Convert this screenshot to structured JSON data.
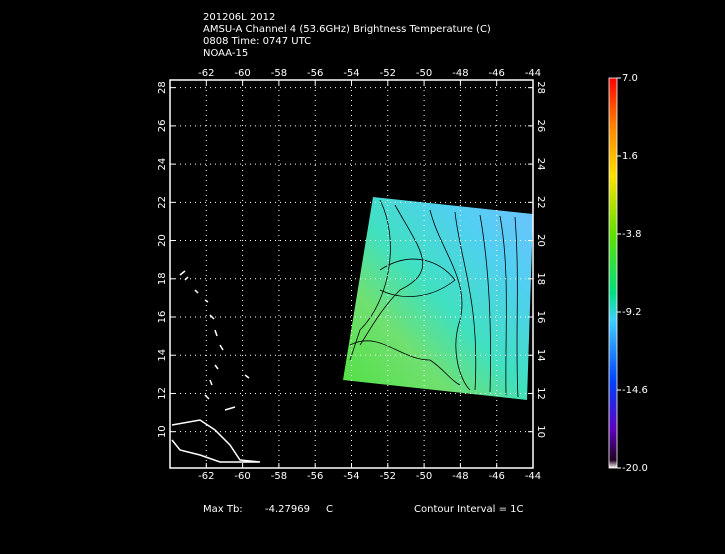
{
  "header": {
    "lines": [
      "201206L 2012",
      "AMSU-A Channel 4 (53.6GHz) Brightness Temperature (C)",
      "0808 Time: 0747 UTC",
      "NOAA-15"
    ]
  },
  "map": {
    "xlim": [
      -64,
      -44
    ],
    "ylim": [
      8.1,
      28.4
    ],
    "xticks": [
      -62,
      -60,
      -58,
      -56,
      -54,
      -52,
      -50,
      -48,
      -46,
      -44
    ],
    "yticks": [
      10,
      12,
      14,
      16,
      18,
      20,
      22,
      24,
      26,
      28
    ],
    "grid": true
  },
  "colorbar": {
    "lim": [
      -20,
      7
    ],
    "ticks": [
      {
        "value": 7,
        "label": "7.0"
      },
      {
        "value": 1.6,
        "label": "1.6"
      },
      -3.8,
      -9.2,
      -14.6,
      {
        "value": -20,
        "label": "-20.0"
      }
    ]
  },
  "footer": {
    "max_label": "Max Tb:",
    "max_value": -4.27969,
    "max_unit": "C",
    "contour": "Contour Interval = 1C"
  }
}
